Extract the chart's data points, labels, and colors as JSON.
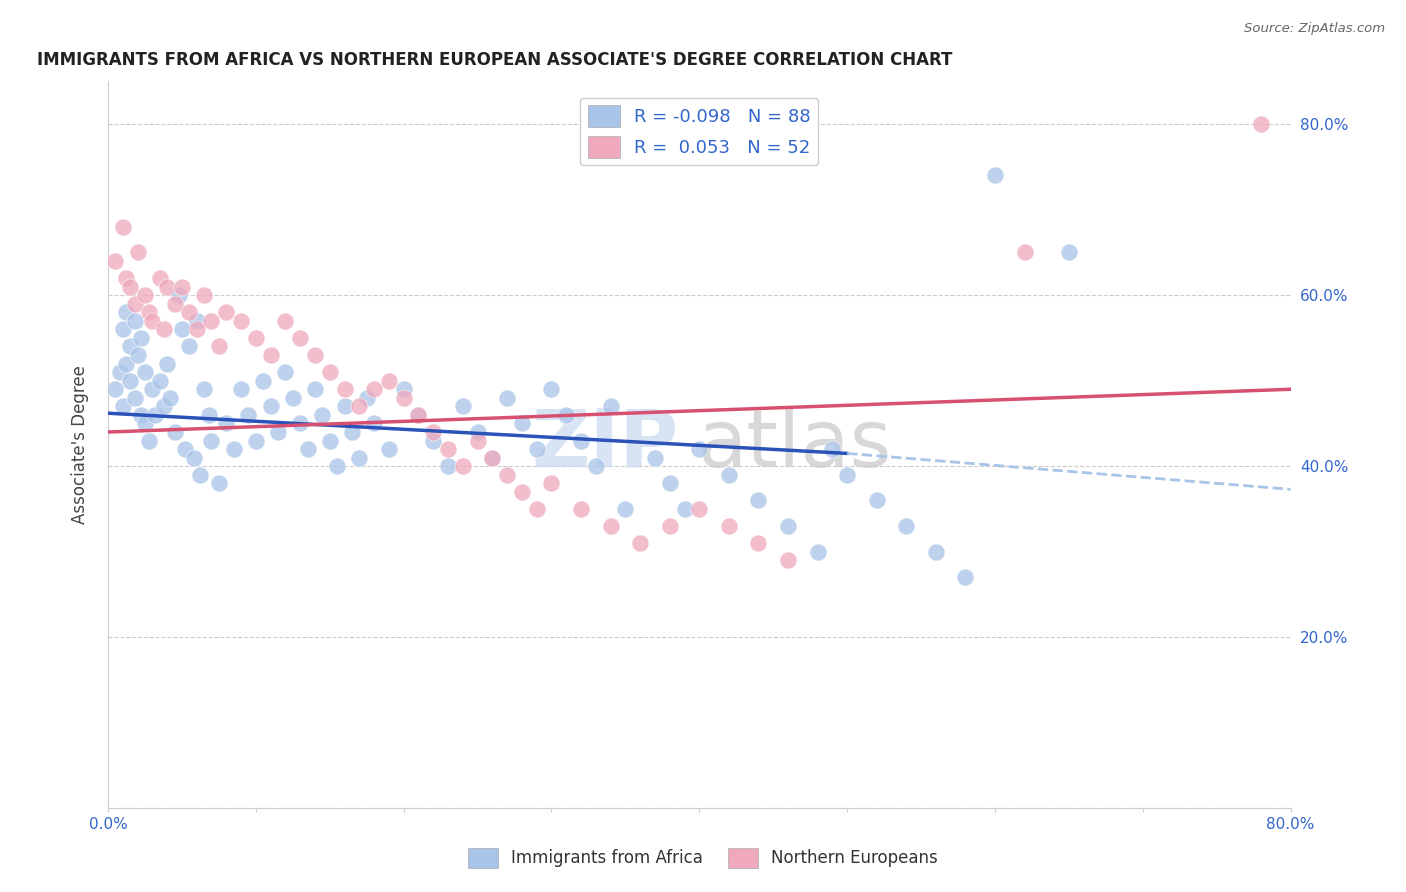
{
  "title": "IMMIGRANTS FROM AFRICA VS NORTHERN EUROPEAN ASSOCIATE'S DEGREE CORRELATION CHART",
  "source": "Source: ZipAtlas.com",
  "ylabel": "Associate's Degree",
  "color_blue": "#a8c4e8",
  "color_pink": "#f0a8bc",
  "trend_blue_solid": "#2a52b8",
  "trend_pink_solid": "#d85070",
  "trend_blue_dash": "#a8c4e8",
  "legend_text1": "R = -0.098   N = 88",
  "legend_text2": "R =  0.053   N = 52",
  "bottom_label1": "Immigrants from Africa",
  "bottom_label2": "Northern Europeans",
  "xlim": [
    0.0,
    0.8
  ],
  "ylim": [
    0.0,
    0.85
  ],
  "trend_blue_x0": 0.0,
  "trend_blue_y0": 0.462,
  "trend_blue_x1": 0.5,
  "trend_blue_y1": 0.415,
  "trend_blue_dash_x0": 0.5,
  "trend_blue_dash_x1": 0.8,
  "trend_blue_dash_y0": 0.415,
  "trend_blue_dash_y1": 0.373,
  "trend_pink_x0": 0.0,
  "trend_pink_y0": 0.44,
  "trend_pink_x1": 0.8,
  "trend_pink_y1": 0.49,
  "africa_x": [
    0.005,
    0.008,
    0.01,
    0.012,
    0.015,
    0.015,
    0.018,
    0.02,
    0.022,
    0.025,
    0.01,
    0.012,
    0.018,
    0.022,
    0.025,
    0.028,
    0.03,
    0.032,
    0.035,
    0.038,
    0.04,
    0.042,
    0.045,
    0.048,
    0.05,
    0.052,
    0.055,
    0.058,
    0.06,
    0.062,
    0.065,
    0.068,
    0.07,
    0.075,
    0.08,
    0.085,
    0.09,
    0.095,
    0.1,
    0.105,
    0.11,
    0.115,
    0.12,
    0.125,
    0.13,
    0.135,
    0.14,
    0.145,
    0.15,
    0.155,
    0.16,
    0.165,
    0.17,
    0.175,
    0.18,
    0.19,
    0.2,
    0.21,
    0.22,
    0.23,
    0.24,
    0.25,
    0.26,
    0.27,
    0.28,
    0.29,
    0.3,
    0.31,
    0.32,
    0.33,
    0.34,
    0.35,
    0.37,
    0.38,
    0.39,
    0.4,
    0.42,
    0.44,
    0.46,
    0.48,
    0.49,
    0.5,
    0.52,
    0.54,
    0.56,
    0.58,
    0.6,
    0.65
  ],
  "africa_y": [
    0.49,
    0.51,
    0.47,
    0.52,
    0.5,
    0.54,
    0.48,
    0.53,
    0.46,
    0.45,
    0.56,
    0.58,
    0.57,
    0.55,
    0.51,
    0.43,
    0.49,
    0.46,
    0.5,
    0.47,
    0.52,
    0.48,
    0.44,
    0.6,
    0.56,
    0.42,
    0.54,
    0.41,
    0.57,
    0.39,
    0.49,
    0.46,
    0.43,
    0.38,
    0.45,
    0.42,
    0.49,
    0.46,
    0.43,
    0.5,
    0.47,
    0.44,
    0.51,
    0.48,
    0.45,
    0.42,
    0.49,
    0.46,
    0.43,
    0.4,
    0.47,
    0.44,
    0.41,
    0.48,
    0.45,
    0.42,
    0.49,
    0.46,
    0.43,
    0.4,
    0.47,
    0.44,
    0.41,
    0.48,
    0.45,
    0.42,
    0.49,
    0.46,
    0.43,
    0.4,
    0.47,
    0.35,
    0.41,
    0.38,
    0.35,
    0.42,
    0.39,
    0.36,
    0.33,
    0.3,
    0.42,
    0.39,
    0.36,
    0.33,
    0.3,
    0.27,
    0.74,
    0.65
  ],
  "northern_x": [
    0.005,
    0.01,
    0.012,
    0.015,
    0.018,
    0.02,
    0.025,
    0.028,
    0.03,
    0.035,
    0.038,
    0.04,
    0.045,
    0.05,
    0.055,
    0.06,
    0.065,
    0.07,
    0.075,
    0.08,
    0.09,
    0.1,
    0.11,
    0.12,
    0.13,
    0.14,
    0.15,
    0.16,
    0.17,
    0.18,
    0.19,
    0.2,
    0.21,
    0.22,
    0.23,
    0.24,
    0.25,
    0.26,
    0.27,
    0.28,
    0.29,
    0.3,
    0.32,
    0.34,
    0.36,
    0.38,
    0.4,
    0.42,
    0.44,
    0.46,
    0.62,
    0.78
  ],
  "northern_y": [
    0.64,
    0.68,
    0.62,
    0.61,
    0.59,
    0.65,
    0.6,
    0.58,
    0.57,
    0.62,
    0.56,
    0.61,
    0.59,
    0.61,
    0.58,
    0.56,
    0.6,
    0.57,
    0.54,
    0.58,
    0.57,
    0.55,
    0.53,
    0.57,
    0.55,
    0.53,
    0.51,
    0.49,
    0.47,
    0.49,
    0.5,
    0.48,
    0.46,
    0.44,
    0.42,
    0.4,
    0.43,
    0.41,
    0.39,
    0.37,
    0.35,
    0.38,
    0.35,
    0.33,
    0.31,
    0.33,
    0.35,
    0.33,
    0.31,
    0.29,
    0.65,
    0.8
  ]
}
